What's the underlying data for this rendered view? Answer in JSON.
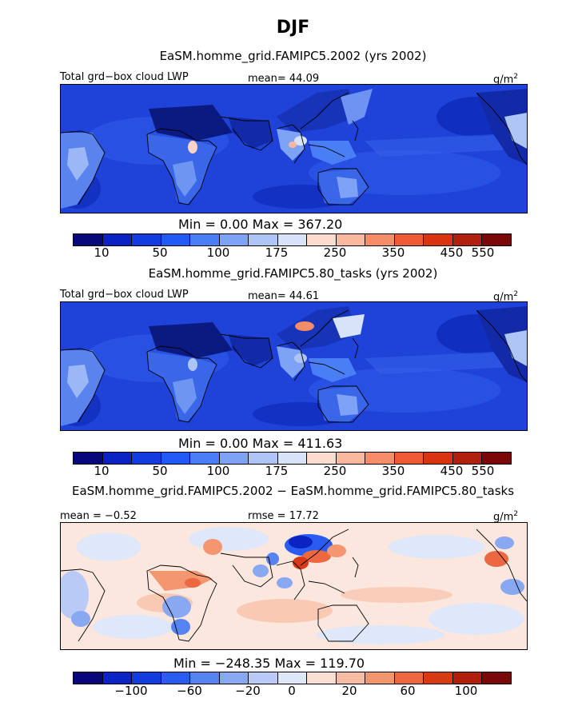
{
  "title": "DJF",
  "colors": {
    "abs_scale": [
      "#08087a",
      "#0a23c2",
      "#123ce0",
      "#2159f5",
      "#4a7ef7",
      "#7ea2f5",
      "#aec4f5",
      "#d7e3f9",
      "#fbdccd",
      "#f9b79d",
      "#f68d68",
      "#ee5a34",
      "#d93312",
      "#b0200c",
      "#7a0808"
    ],
    "diff_scale": [
      "#08087a",
      "#0a23c2",
      "#123ce0",
      "#2a5cf2",
      "#5583f2",
      "#88a8f2",
      "#b8caf5",
      "#dfe7fa",
      "#fbe0d2",
      "#f8bca2",
      "#f4966f",
      "#ec6840",
      "#d93a16",
      "#b01f0a",
      "#7a0808"
    ],
    "land_abs": "#3a66e8",
    "ocean_abs": "#1f43d8"
  },
  "panels": [
    {
      "title": "EaSM.homme_grid.FAMIPC5.2002 (yrs 2002)",
      "left_label": "Total grd−box cloud LWP",
      "center_label": "mean=  44.09",
      "units": "g/m",
      "units_sup": "2",
      "minmax": "Min =    0.00  Max =  367.20",
      "ticks": [
        "10",
        "50",
        "100",
        "175",
        "250",
        "350",
        "450",
        "550"
      ]
    },
    {
      "title": "EaSM.homme_grid.FAMIPC5.80_tasks (yrs 2002)",
      "left_label": "Total grd−box cloud LWP",
      "center_label": "mean=  44.61",
      "units": "g/m",
      "units_sup": "2",
      "minmax": "Min =    0.00  Max =  411.63",
      "ticks": [
        "10",
        "50",
        "100",
        "175",
        "250",
        "350",
        "450",
        "550"
      ]
    },
    {
      "title": "EaSM.homme_grid.FAMIPC5.2002 − EaSM.homme_grid.FAMIPC5.80_tasks",
      "left_label": "mean =  −0.52",
      "center_label": "rmse =  17.72",
      "units": "g/m",
      "units_sup": "2",
      "minmax": "Min = −248.35  Max =  119.70",
      "ticks": [
        "−100",
        "−60",
        "−20",
        "0",
        "20",
        "60",
        "100"
      ]
    }
  ]
}
